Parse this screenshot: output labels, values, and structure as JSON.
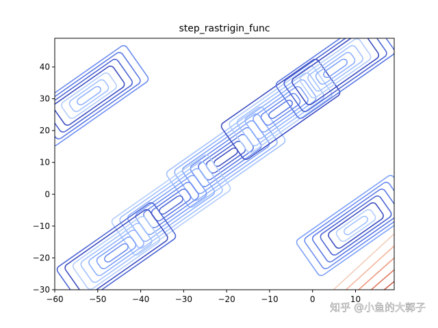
{
  "chart_data": {
    "type": "contour",
    "title": "step_rastrigin_func",
    "xlim": [
      -60,
      19
    ],
    "ylim": [
      -30,
      49
    ],
    "xticks": [
      {
        "value": -60,
        "label": "−60"
      },
      {
        "value": -50,
        "label": "−50"
      },
      {
        "value": -40,
        "label": "−40"
      },
      {
        "value": -30,
        "label": "−30"
      },
      {
        "value": -20,
        "label": "−20"
      },
      {
        "value": -10,
        "label": "−10"
      },
      0,
      10
    ],
    "yticks": [
      {
        "value": -30,
        "label": "−30"
      },
      {
        "value": -20,
        "label": "−20"
      },
      {
        "value": -10,
        "label": "−10"
      },
      0,
      10,
      20,
      30,
      40
    ],
    "colormap": "coolwarm"
  },
  "watermark": "知乎 @小鱼的大郭子"
}
